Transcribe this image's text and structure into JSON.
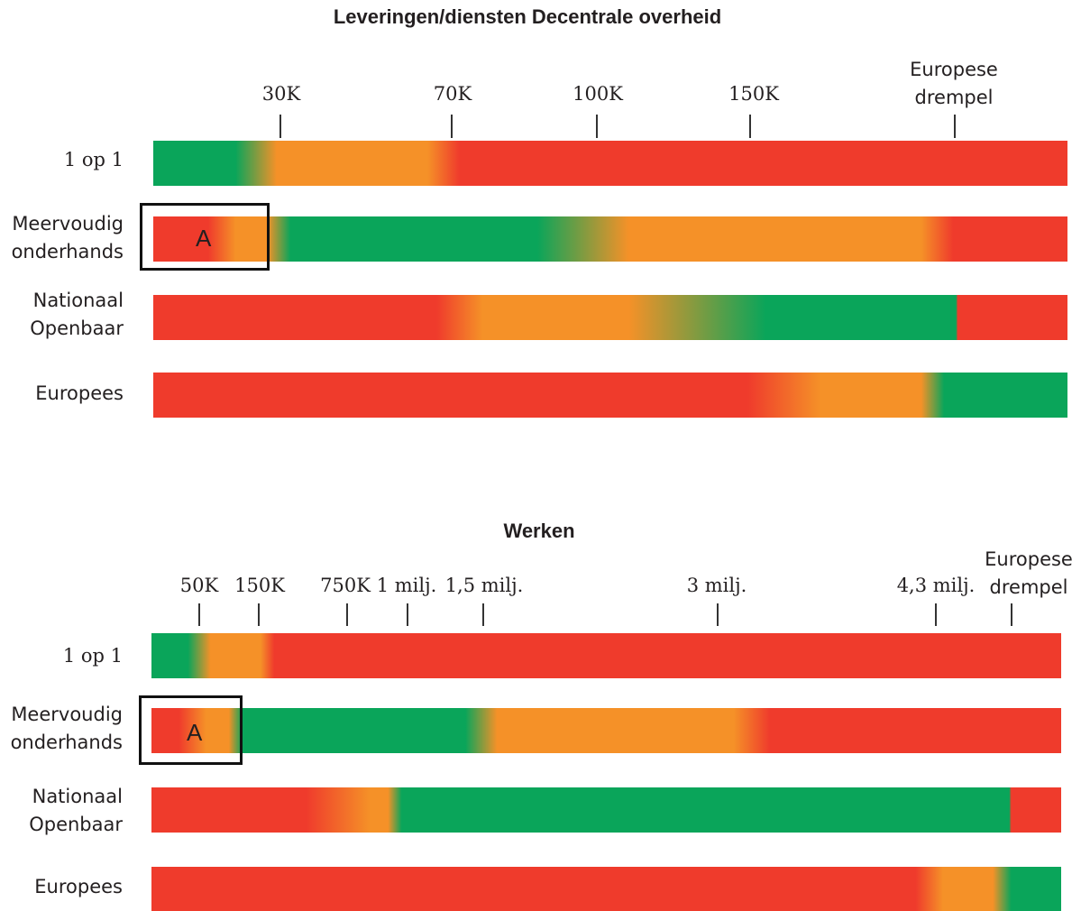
{
  "colors": {
    "green": "#0aa55a",
    "orange": "#f59128",
    "red": "#ef3b2c"
  },
  "top": {
    "title": "Leveringen/diensten Decentrale overheid",
    "ticks": [
      "30K",
      "70K",
      "100K",
      "150K"
    ],
    "threshold_label_line1": "Europese",
    "threshold_label_line2": "drempel",
    "rows": [
      {
        "label_line1": "1 op 1",
        "label_line2": ""
      },
      {
        "label_line1": "Meervoudig",
        "label_line2": "onderhands"
      },
      {
        "label_line1": "Nationaal",
        "label_line2": "Openbaar"
      },
      {
        "label_line1": "Europees",
        "label_line2": ""
      }
    ],
    "marker": "A"
  },
  "bottom": {
    "title": "Werken",
    "ticks": [
      "50K",
      "150K",
      "750K",
      "1 milj.",
      "1,5 milj.",
      "3 milj.",
      "4,3 milj."
    ],
    "threshold_label_line1": "Europese",
    "threshold_label_line2": "drempel",
    "rows": [
      {
        "label_line1": "1 op 1",
        "label_line2": ""
      },
      {
        "label_line1": "Meervoudig",
        "label_line2": "onderhands"
      },
      {
        "label_line1": "Nationaal",
        "label_line2": "Openbaar"
      },
      {
        "label_line1": "Europees",
        "label_line2": ""
      }
    ],
    "marker": "A"
  }
}
